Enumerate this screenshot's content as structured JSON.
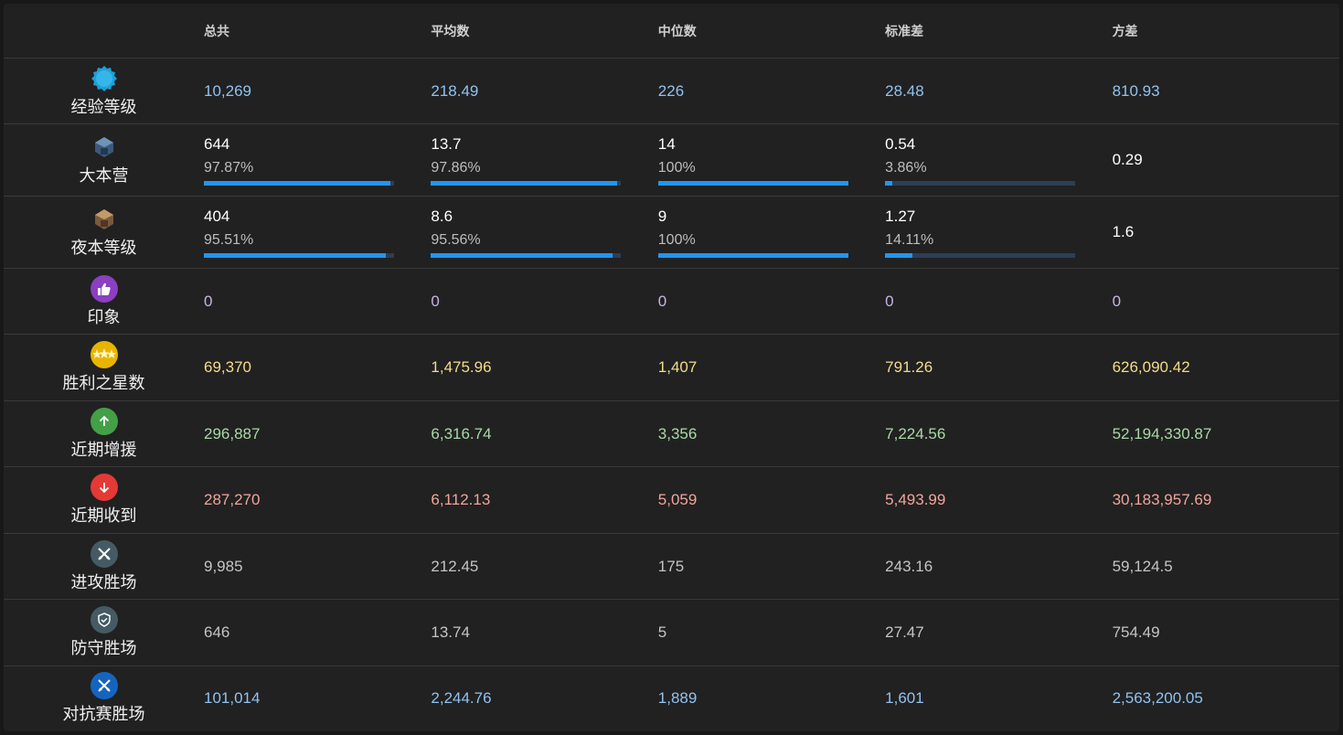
{
  "headers": [
    "总共",
    "平均数",
    "中位数",
    "标准差",
    "方差"
  ],
  "rows": [
    {
      "label": "经验等级",
      "icon": "xp-badge-icon",
      "tone": "blue",
      "values": [
        "10,269",
        "218.49",
        "226",
        "28.48",
        "810.93"
      ]
    },
    {
      "label": "大本营",
      "icon": "town-hall-icon",
      "tone": "white",
      "values": [
        "644",
        "13.7",
        "14",
        "0.54",
        "0.29"
      ],
      "percents": [
        "97.87%",
        "97.86%",
        "100%",
        "3.86%"
      ],
      "fills": [
        97.87,
        97.86,
        100,
        3.86
      ]
    },
    {
      "label": "夜本等级",
      "icon": "builder-hall-icon",
      "tone": "white",
      "values": [
        "404",
        "8.6",
        "9",
        "1.27",
        "1.6"
      ],
      "percents": [
        "95.51%",
        "95.56%",
        "100%",
        "14.11%"
      ],
      "fills": [
        95.51,
        95.56,
        100,
        14.11
      ]
    },
    {
      "label": "印象",
      "icon": "thumbs-up-icon",
      "tone": "purple",
      "values": [
        "0",
        "0",
        "0",
        "0",
        "0"
      ]
    },
    {
      "label": "胜利之星数",
      "icon": "war-stars-icon",
      "tone": "yellow",
      "values": [
        "69,370",
        "1,475.96",
        "1,407",
        "791.26",
        "626,090.42"
      ]
    },
    {
      "label": "近期增援",
      "icon": "arrow-up-icon",
      "tone": "green",
      "values": [
        "296,887",
        "6,316.74",
        "3,356",
        "7,224.56",
        "52,194,330.87"
      ]
    },
    {
      "label": "近期收到",
      "icon": "arrow-down-icon",
      "tone": "red",
      "values": [
        "287,270",
        "6,112.13",
        "5,059",
        "5,493.99",
        "30,183,957.69"
      ]
    },
    {
      "label": "进攻胜场",
      "icon": "crossed-swords-icon",
      "tone": "gray",
      "values": [
        "9,985",
        "212.45",
        "175",
        "243.16",
        "59,124.5"
      ]
    },
    {
      "label": "防守胜场",
      "icon": "shield-check-icon",
      "tone": "gray",
      "values": [
        "646",
        "13.74",
        "5",
        "27.47",
        "754.49"
      ]
    },
    {
      "label": "对抗赛胜场",
      "icon": "versus-swords-icon",
      "tone": "blue",
      "values": [
        "101,014",
        "2,244.76",
        "1,889",
        "1,601",
        "2,563,200.05"
      ]
    }
  ]
}
